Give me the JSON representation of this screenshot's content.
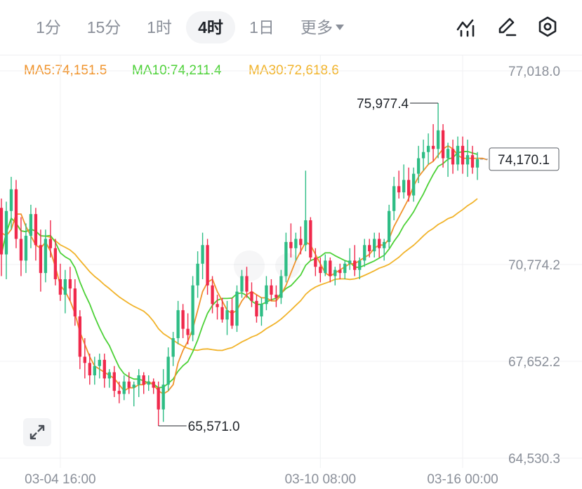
{
  "toolbar": {
    "timeframes": [
      "1分",
      "15分",
      "1时",
      "4时",
      "1日"
    ],
    "active_timeframe": "4时",
    "more_label": "更多",
    "icons": [
      "indicator-icon",
      "draw-icon",
      "settings-icon"
    ]
  },
  "legend": {
    "ma5": "MA5:74,151.5",
    "ma10": "MA10:74,211.4",
    "ma30": "MA30:72,618.6"
  },
  "colors": {
    "up": "#2ebd85",
    "down": "#f0294c",
    "ma5": "#f0932b",
    "ma10": "#4cd137",
    "ma30": "#f1b32a",
    "axis_text": "#8a8f99"
  },
  "chart_data": {
    "type": "candlestick",
    "interval": "4h",
    "y_axis_labels": [
      "77,018.0",
      "70,774.2",
      "67,652.2",
      "64,530.3"
    ],
    "x_axis_labels": [
      "03-04 16:00",
      "03-10 08:00",
      "03-16 00:00"
    ],
    "ylim": [
      64530.3,
      77018.0
    ],
    "high_annotation": "75,977.4",
    "low_annotation": "65,571.0",
    "current_price": "74,170.1",
    "grid": true,
    "candles": [
      [
        72600,
        72900,
        70400,
        71100
      ],
      [
        71100,
        72800,
        70300,
        72500
      ],
      [
        72500,
        73600,
        71900,
        73200
      ],
      [
        73200,
        73500,
        71300,
        71600
      ],
      [
        71600,
        72300,
        70400,
        70900
      ],
      [
        70900,
        72100,
        70500,
        71700
      ],
      [
        71700,
        72700,
        71300,
        72400
      ],
      [
        72400,
        72600,
        70900,
        71400
      ],
      [
        71400,
        71900,
        69900,
        70500
      ],
      [
        70500,
        71900,
        70200,
        71600
      ],
      [
        71600,
        72200,
        71000,
        71300
      ],
      [
        71300,
        71600,
        70100,
        70300
      ],
      [
        70300,
        70800,
        69600,
        69800
      ],
      [
        69800,
        70600,
        69200,
        70300
      ],
      [
        70300,
        70700,
        69600,
        70000
      ],
      [
        70000,
        70300,
        68800,
        69100
      ],
      [
        69100,
        69300,
        67400,
        67800
      ],
      [
        67800,
        68400,
        67100,
        67600
      ],
      [
        67600,
        67900,
        66900,
        67200
      ],
      [
        67200,
        67800,
        66900,
        67500
      ],
      [
        67500,
        67900,
        67100,
        67700
      ],
      [
        67700,
        67900,
        66800,
        67100
      ],
      [
        67100,
        67400,
        66800,
        67300
      ],
      [
        67300,
        67500,
        66500,
        66700
      ],
      [
        66700,
        67000,
        66300,
        66600
      ],
      [
        66600,
        67200,
        66400,
        67000
      ],
      [
        67000,
        67300,
        66600,
        66800
      ],
      [
        66800,
        67000,
        66200,
        66900
      ],
      [
        66900,
        67400,
        66500,
        67200
      ],
      [
        67200,
        67300,
        66600,
        66900
      ],
      [
        66900,
        67200,
        66700,
        67000
      ],
      [
        67000,
        67100,
        66600,
        66800
      ],
      [
        66800,
        67000,
        65571,
        66100
      ],
      [
        66100,
        67400,
        65700,
        66900
      ],
      [
        66900,
        68100,
        66700,
        67800
      ],
      [
        67800,
        68600,
        67500,
        68400
      ],
      [
        68400,
        69600,
        68200,
        69300
      ],
      [
        69300,
        69500,
        68400,
        68700
      ],
      [
        68700,
        69200,
        68200,
        68500
      ],
      [
        68500,
        70400,
        68300,
        70100
      ],
      [
        70100,
        71200,
        69700,
        70800
      ],
      [
        70800,
        71800,
        70300,
        71400
      ],
      [
        71400,
        71600,
        69800,
        70100
      ],
      [
        70100,
        70400,
        69200,
        69500
      ],
      [
        69500,
        69800,
        69000,
        69400
      ],
      [
        69400,
        69700,
        68900,
        69000
      ],
      [
        69000,
        69600,
        68500,
        69300
      ],
      [
        69300,
        69700,
        68700,
        68800
      ],
      [
        68800,
        70100,
        68600,
        69900
      ],
      [
        69900,
        70600,
        69700,
        70400
      ],
      [
        70400,
        70700,
        69700,
        69900
      ],
      [
        69900,
        70200,
        69400,
        69600
      ],
      [
        69600,
        69800,
        68900,
        69100
      ],
      [
        69100,
        69700,
        68800,
        69500
      ],
      [
        69500,
        70400,
        69300,
        70100
      ],
      [
        70100,
        70300,
        69600,
        69800
      ],
      [
        69800,
        70100,
        69400,
        69700
      ],
      [
        69700,
        70600,
        69500,
        70400
      ],
      [
        70400,
        71800,
        70200,
        71500
      ],
      [
        71500,
        72100,
        71000,
        71300
      ],
      [
        71300,
        71800,
        70900,
        71600
      ],
      [
        71600,
        72000,
        71100,
        71400
      ],
      [
        71400,
        73800,
        71200,
        72200
      ],
      [
        72200,
        72300,
        70900,
        71000
      ],
      [
        71000,
        71300,
        70400,
        70700
      ],
      [
        70700,
        71000,
        70200,
        70500
      ],
      [
        70500,
        71100,
        70400,
        70900
      ],
      [
        70900,
        71000,
        70200,
        70400
      ],
      [
        70400,
        70700,
        70100,
        70600
      ],
      [
        70600,
        70800,
        70300,
        70500
      ],
      [
        70500,
        70900,
        70300,
        70800
      ],
      [
        70800,
        71300,
        70600,
        70900
      ],
      [
        70900,
        71400,
        70400,
        70600
      ],
      [
        70600,
        71000,
        70300,
        70900
      ],
      [
        70900,
        71600,
        70700,
        71400
      ],
      [
        71400,
        71600,
        71000,
        71200
      ],
      [
        71200,
        71800,
        71000,
        71600
      ],
      [
        71600,
        71800,
        71000,
        71300
      ],
      [
        71300,
        71600,
        70900,
        71500
      ],
      [
        71500,
        72700,
        71300,
        72500
      ],
      [
        72500,
        73600,
        72200,
        73300
      ],
      [
        73300,
        73800,
        72900,
        73100
      ],
      [
        73100,
        74000,
        72900,
        73500
      ],
      [
        73500,
        73900,
        72800,
        73000
      ],
      [
        73000,
        73900,
        72800,
        73700
      ],
      [
        73700,
        74600,
        73400,
        74200
      ],
      [
        74200,
        74800,
        73800,
        74400
      ],
      [
        74400,
        75000,
        74000,
        74600
      ],
      [
        74600,
        75300,
        74100,
        74500
      ],
      [
        74500,
        75977,
        74200,
        75100
      ],
      [
        75100,
        75300,
        73900,
        74200
      ],
      [
        74200,
        74700,
        73600,
        74500
      ],
      [
        74500,
        74800,
        73700,
        74000
      ],
      [
        74000,
        74900,
        73800,
        74600
      ],
      [
        74600,
        74900,
        73700,
        74000
      ],
      [
        74000,
        74800,
        73600,
        74300
      ],
      [
        74300,
        74600,
        73700,
        73900
      ],
      [
        73900,
        74400,
        73500,
        74170
      ]
    ],
    "ma_series": {
      "ma5": [
        71800,
        71700,
        71900,
        72400,
        72400,
        72000,
        71700,
        71400,
        71300,
        71500,
        71200,
        70700,
        70100,
        69900,
        69600,
        69200,
        68600,
        68200,
        67800,
        67500,
        67400,
        67300,
        67200,
        67100,
        66900,
        66700,
        66800,
        66800,
        66900,
        66900,
        67000,
        66900,
        66700,
        66600,
        66700,
        66900,
        67600,
        68000,
        68300,
        68700,
        69300,
        69900,
        70200,
        70300,
        69900,
        69600,
        69300,
        69200,
        69300,
        69600,
        69800,
        69900,
        69800,
        69700,
        69700,
        69600,
        69600,
        69800,
        70100,
        70500,
        70900,
        71200,
        71500,
        71400,
        71100,
        70800,
        70500,
        70400,
        70500,
        70600,
        70700,
        70800,
        70800,
        70900,
        71000,
        71100,
        71300,
        71400,
        71400,
        71600,
        72000,
        72300,
        72600,
        72900,
        73300,
        73600,
        73800,
        74000,
        74100,
        74300,
        74500,
        74600,
        74500,
        74300,
        74200,
        74200,
        74200,
        74200,
        74200,
        74151
      ]
    }
  }
}
